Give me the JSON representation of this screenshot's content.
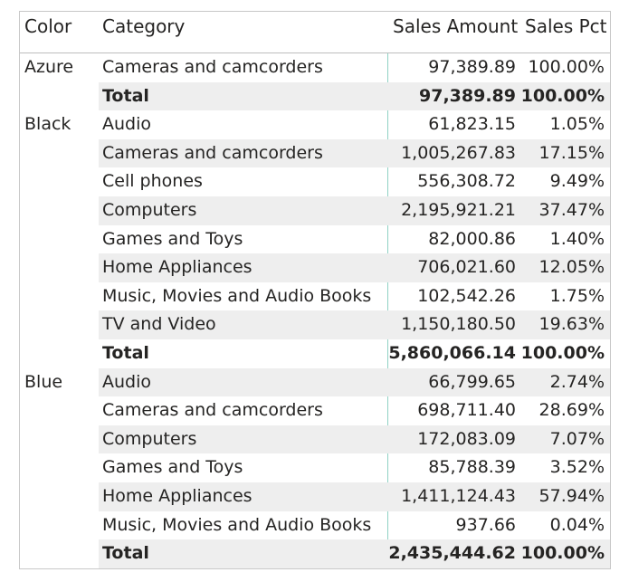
{
  "table": {
    "headers": {
      "color": "Color",
      "category": "Category",
      "amount": "Sales Amount",
      "pct": "Sales Pct"
    },
    "rows": [
      {
        "color": "Azure",
        "category": "Cameras and camcorders",
        "amount": "97,389.89",
        "pct": "100.00%",
        "total": false
      },
      {
        "color": "",
        "category": "Total",
        "amount": "97,389.89",
        "pct": "100.00%",
        "total": true
      },
      {
        "color": "Black",
        "category": "Audio",
        "amount": "61,823.15",
        "pct": "1.05%",
        "total": false
      },
      {
        "color": "",
        "category": "Cameras and camcorders",
        "amount": "1,005,267.83",
        "pct": "17.15%",
        "total": false
      },
      {
        "color": "",
        "category": "Cell phones",
        "amount": "556,308.72",
        "pct": "9.49%",
        "total": false
      },
      {
        "color": "",
        "category": "Computers",
        "amount": "2,195,921.21",
        "pct": "37.47%",
        "total": false
      },
      {
        "color": "",
        "category": "Games and Toys",
        "amount": "82,000.86",
        "pct": "1.40%",
        "total": false
      },
      {
        "color": "",
        "category": "Home Appliances",
        "amount": "706,021.60",
        "pct": "12.05%",
        "total": false
      },
      {
        "color": "",
        "category": "Music, Movies and Audio Books",
        "amount": "102,542.26",
        "pct": "1.75%",
        "total": false
      },
      {
        "color": "",
        "category": "TV and Video",
        "amount": "1,150,180.50",
        "pct": "19.63%",
        "total": false
      },
      {
        "color": "",
        "category": "Total",
        "amount": "5,860,066.14",
        "pct": "100.00%",
        "total": true
      },
      {
        "color": "Blue",
        "category": "Audio",
        "amount": "66,799.65",
        "pct": "2.74%",
        "total": false
      },
      {
        "color": "",
        "category": "Cameras and camcorders",
        "amount": "698,711.40",
        "pct": "28.69%",
        "total": false
      },
      {
        "color": "",
        "category": "Computers",
        "amount": "172,083.09",
        "pct": "7.07%",
        "total": false
      },
      {
        "color": "",
        "category": "Games and Toys",
        "amount": "85,788.39",
        "pct": "3.52%",
        "total": false
      },
      {
        "color": "",
        "category": "Home Appliances",
        "amount": "1,411,124.43",
        "pct": "57.94%",
        "total": false
      },
      {
        "color": "",
        "category": "Music, Movies and Audio Books",
        "amount": "937.66",
        "pct": "0.04%",
        "total": false
      },
      {
        "color": "",
        "category": "Total",
        "amount": "2,435,444.62",
        "pct": "100.00%",
        "total": true
      }
    ]
  },
  "colors": {
    "text": "#252423",
    "row_band": "#eeeeee",
    "border": "#c8c8c8",
    "divider": "#8fd1c4"
  }
}
